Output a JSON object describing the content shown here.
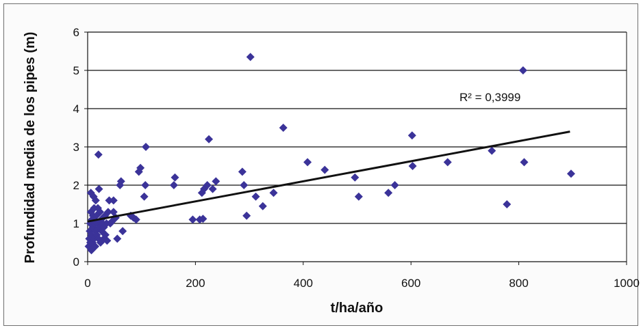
{
  "chart_data": {
    "type": "scatter",
    "xlabel": "t/ha/año",
    "ylabel": "Profundidad media de los pipes (m)",
    "xlim": [
      0,
      1000
    ],
    "ylim": [
      0,
      6
    ],
    "xticks": [
      "0",
      "200",
      "400",
      "600",
      "800",
      "1000"
    ],
    "yticks": [
      "0",
      "1",
      "2",
      "3",
      "4",
      "5",
      "6"
    ],
    "grid": "horizontal",
    "marker_color": "#3b3399",
    "trendline": {
      "type": "linear",
      "x": [
        0,
        895
      ],
      "y": [
        1.05,
        3.4
      ]
    },
    "annotation": {
      "text": "R² = 0,3999",
      "x": 690,
      "y": 4.3
    },
    "points": [
      [
        2,
        0.4
      ],
      [
        3,
        0.6
      ],
      [
        4,
        0.8
      ],
      [
        5,
        0.5
      ],
      [
        5,
        1.0
      ],
      [
        6,
        1.3
      ],
      [
        6,
        1.8
      ],
      [
        7,
        0.3
      ],
      [
        7,
        0.7
      ],
      [
        8,
        1.1
      ],
      [
        9,
        0.5
      ],
      [
        10,
        0.9
      ],
      [
        10,
        1.2
      ],
      [
        11,
        1.7
      ],
      [
        12,
        0.6
      ],
      [
        12,
        1.4
      ],
      [
        13,
        1.0
      ],
      [
        14,
        0.4
      ],
      [
        15,
        0.8
      ],
      [
        15,
        1.6
      ],
      [
        16,
        1.2
      ],
      [
        17,
        0.7
      ],
      [
        18,
        1.0
      ],
      [
        19,
        1.4
      ],
      [
        20,
        0.6
      ],
      [
        20,
        2.8
      ],
      [
        21,
        1.9
      ],
      [
        22,
        0.9
      ],
      [
        23,
        1.3
      ],
      [
        24,
        0.5
      ],
      [
        25,
        1.1
      ],
      [
        26,
        0.8
      ],
      [
        28,
        1.0
      ],
      [
        30,
        0.6
      ],
      [
        30,
        0.9
      ],
      [
        32,
        1.2
      ],
      [
        33,
        0.7
      ],
      [
        35,
        1.0
      ],
      [
        36,
        0.55
      ],
      [
        38,
        1.3
      ],
      [
        40,
        1.6
      ],
      [
        42,
        1.0
      ],
      [
        45,
        1.05
      ],
      [
        48,
        1.6
      ],
      [
        48,
        1.3
      ],
      [
        52,
        1.15
      ],
      [
        55,
        0.6
      ],
      [
        60,
        2.0
      ],
      [
        62,
        2.1
      ],
      [
        65,
        0.8
      ],
      [
        80,
        1.2
      ],
      [
        85,
        1.15
      ],
      [
        90,
        1.1
      ],
      [
        95,
        2.35
      ],
      [
        98,
        2.45
      ],
      [
        105,
        1.7
      ],
      [
        107,
        2.0
      ],
      [
        108,
        3.0
      ],
      [
        160,
        2.0
      ],
      [
        162,
        2.2
      ],
      [
        195,
        1.1
      ],
      [
        208,
        1.1
      ],
      [
        212,
        1.8
      ],
      [
        214,
        1.12
      ],
      [
        216,
        1.9
      ],
      [
        222,
        2.0
      ],
      [
        225,
        3.2
      ],
      [
        232,
        1.9
      ],
      [
        238,
        2.1
      ],
      [
        287,
        2.35
      ],
      [
        290,
        2.0
      ],
      [
        295,
        1.2
      ],
      [
        302,
        5.35
      ],
      [
        312,
        1.7
      ],
      [
        325,
        1.45
      ],
      [
        345,
        1.8
      ],
      [
        363,
        3.5
      ],
      [
        408,
        2.6
      ],
      [
        440,
        2.4
      ],
      [
        496,
        2.2
      ],
      [
        503,
        1.7
      ],
      [
        558,
        1.8
      ],
      [
        570,
        2.0
      ],
      [
        602,
        3.3
      ],
      [
        603,
        2.5
      ],
      [
        668,
        2.6
      ],
      [
        750,
        2.9
      ],
      [
        778,
        1.5
      ],
      [
        808,
        5.0
      ],
      [
        810,
        2.6
      ],
      [
        897,
        2.3
      ]
    ]
  }
}
